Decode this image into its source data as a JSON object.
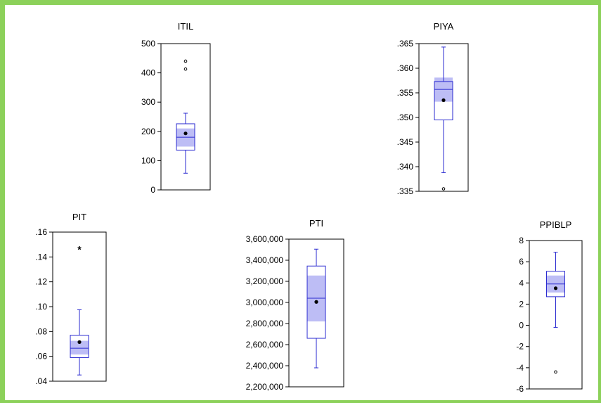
{
  "colors": {
    "frame": "#8cd15a",
    "box": "#2a2ad0",
    "ci": "#bdbdf5",
    "plot_border": "#000000",
    "mean": "#000000"
  },
  "chart_data": [
    {
      "type": "boxplot",
      "title": "ITIL",
      "ylim": [
        0,
        500
      ],
      "ticks": [
        0,
        100,
        200,
        300,
        400,
        500
      ],
      "tick_labels": [
        "0",
        "100",
        "200",
        "300",
        "400",
        "500"
      ],
      "whisker_low": 57,
      "q1": 136,
      "median": 180,
      "q3": 226,
      "whisker_high": 262,
      "ci": [
        148,
        210
      ],
      "mean": 193,
      "outliers": [
        {
          "value": 440,
          "marker": "o"
        },
        {
          "value": 413,
          "marker": "o"
        }
      ]
    },
    {
      "type": "boxplot",
      "title": "PIYA",
      "ylim": [
        0.335,
        0.365
      ],
      "ticks": [
        0.335,
        0.34,
        0.345,
        0.35,
        0.355,
        0.36,
        0.365
      ],
      "tick_labels": [
        ".335",
        ".340",
        ".345",
        ".350",
        ".355",
        ".360",
        ".365"
      ],
      "whisker_low": 0.3388,
      "q1": 0.3495,
      "median": 0.3557,
      "q3": 0.3573,
      "whisker_high": 0.3643,
      "ci": [
        0.3532,
        0.3581
      ],
      "mean": 0.3535,
      "outliers": [
        {
          "value": 0.3355,
          "marker": "o"
        }
      ]
    },
    {
      "type": "boxplot",
      "title": "PIT",
      "ylim": [
        0.04,
        0.16
      ],
      "ticks": [
        0.04,
        0.06,
        0.08,
        0.1,
        0.12,
        0.14,
        0.16
      ],
      "tick_labels": [
        ".04",
        ".06",
        ".08",
        ".10",
        ".12",
        ".14",
        ".16"
      ],
      "whisker_low": 0.045,
      "q1": 0.059,
      "median": 0.0665,
      "q3": 0.077,
      "whisker_high": 0.0975,
      "ci": [
        0.0615,
        0.0725
      ],
      "mean": 0.0715,
      "outliers": [
        {
          "value": 0.146,
          "marker": "*"
        }
      ]
    },
    {
      "type": "boxplot",
      "title": "PTI",
      "ylim": [
        2200000,
        3600000
      ],
      "ticks": [
        2200000,
        2400000,
        2600000,
        2800000,
        3000000,
        3200000,
        3400000,
        3600000
      ],
      "tick_labels": [
        "2,200,000",
        "2,400,000",
        "2,600,000",
        "2,800,000",
        "3,000,000",
        "3,200,000",
        "3,400,000",
        "3,600,000"
      ],
      "whisker_low": 2380000,
      "q1": 2660000,
      "median": 3040000,
      "q3": 3345000,
      "whisker_high": 3505000,
      "ci": [
        2820000,
        3255000
      ],
      "mean": 3005000,
      "outliers": []
    },
    {
      "type": "boxplot",
      "title": "PPIBLP",
      "ylim": [
        -6,
        8
      ],
      "ticks": [
        -6,
        -4,
        -2,
        0,
        2,
        4,
        6,
        8
      ],
      "tick_labels": [
        "-6",
        "-4",
        "-2",
        "0",
        "2",
        "4",
        "6",
        "8"
      ],
      "whisker_low": -0.2,
      "q1": 2.7,
      "median": 3.9,
      "q3": 5.1,
      "whisker_high": 6.9,
      "ci": [
        3.1,
        4.7
      ],
      "mean": 3.5,
      "outliers": [
        {
          "value": -4.4,
          "marker": "o"
        }
      ]
    }
  ]
}
